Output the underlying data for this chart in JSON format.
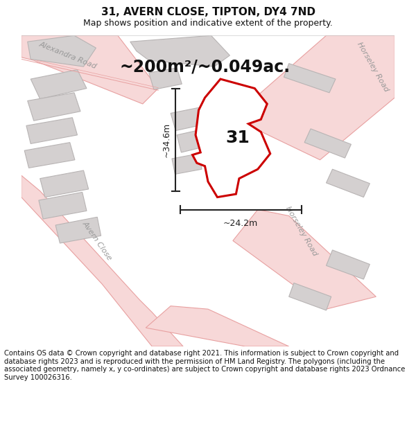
{
  "title_line1": "31, AVERN CLOSE, TIPTON, DY4 7ND",
  "title_line2": "Map shows position and indicative extent of the property.",
  "footer": "Contains OS data © Crown copyright and database right 2021. This information is subject to Crown copyright and database rights 2023 and is reproduced with the permission of HM Land Registry. The polygons (including the associated geometry, namely x, y co-ordinates) are subject to Crown copyright and database rights 2023 Ordnance Survey 100026316.",
  "area_label": "~200m²/~0.049ac.",
  "dim_vertical": "~34.6m",
  "dim_horizontal": "~24.2m",
  "property_label": "31",
  "map_bg": "#f2eeee",
  "road_fill": "#f7d8d8",
  "road_edge": "#e8a0a0",
  "building_fill": "#d4d0d0",
  "building_edge": "#b8b4b4",
  "property_fill": "#ffffff",
  "property_edge": "#cc0000",
  "dim_color": "#222222",
  "text_color": "#111111",
  "road_label_color": "#999999",
  "title_fontsize": 11,
  "subtitle_fontsize": 9,
  "area_fontsize": 17,
  "prop_label_fontsize": 18,
  "dim_fontsize": 9,
  "footer_fontsize": 7.2,
  "road_label_fontsize": 8
}
